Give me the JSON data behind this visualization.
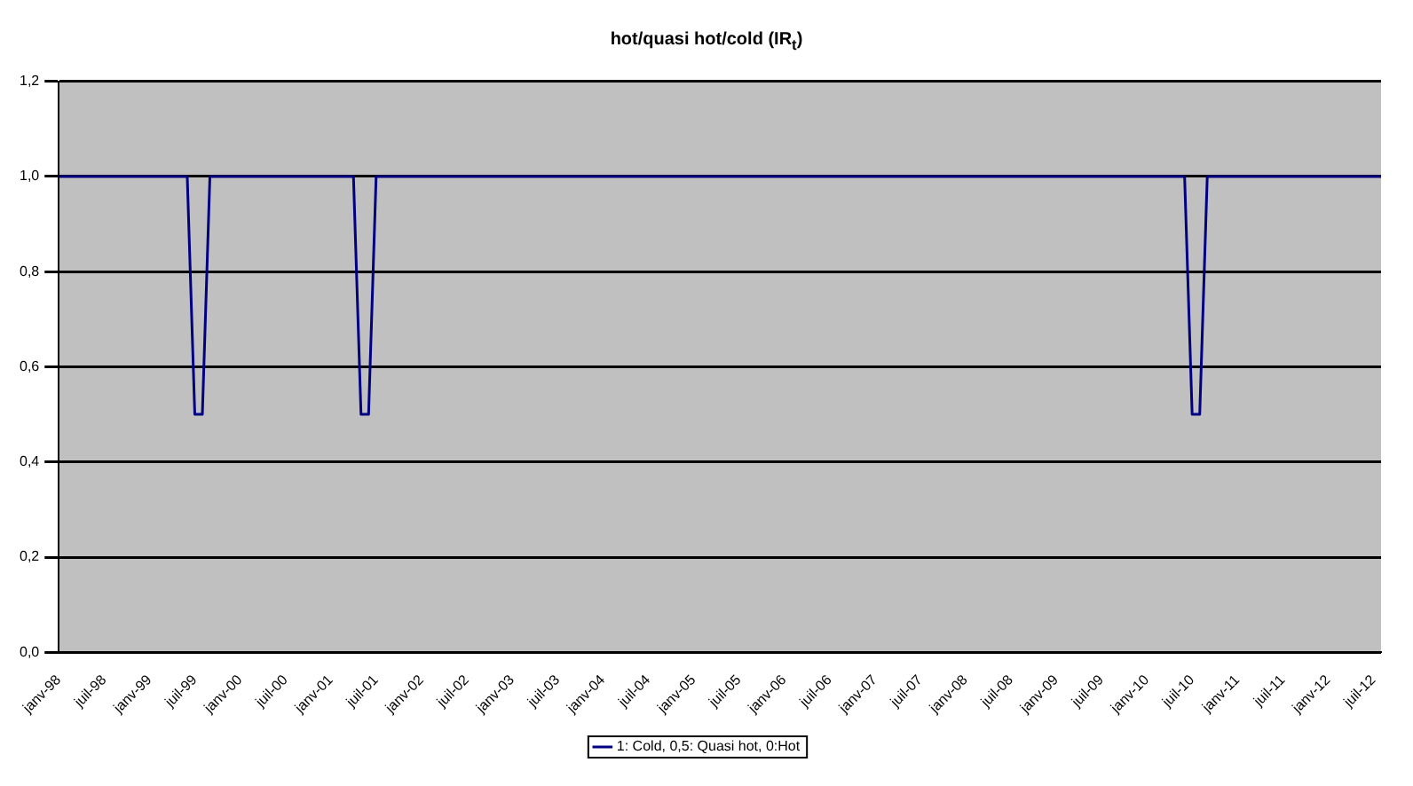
{
  "chart_data": {
    "type": "line",
    "title": "hot/quasi hot/cold (IR$_{t}$)",
    "x": [
      "1998-01",
      "1999-06",
      "1999-07",
      "1999-08",
      "1999-09",
      "2001-04",
      "2001-05",
      "2001-06",
      "2001-07",
      "2010-06",
      "2010-07",
      "2010-08",
      "2010-09",
      "2012-08"
    ],
    "series": [
      {
        "name": "1: Cold, 0,5: Quasi hot, 0:Hot",
        "color": "#000080",
        "values": [
          1,
          1,
          0.5,
          0.5,
          1,
          1,
          0.5,
          0.5,
          1,
          1,
          0.5,
          0.5,
          1,
          1
        ]
      }
    ],
    "xlim": [
      "1998-01",
      "2012-08"
    ],
    "xticks": [
      {
        "value": "1998-01",
        "label": "janv-98"
      },
      {
        "value": "1998-07",
        "label": "juil-98"
      },
      {
        "value": "1999-01",
        "label": "janv-99"
      },
      {
        "value": "1999-07",
        "label": "juil-99"
      },
      {
        "value": "2000-01",
        "label": "janv-00"
      },
      {
        "value": "2000-07",
        "label": "juil-00"
      },
      {
        "value": "2001-01",
        "label": "janv-01"
      },
      {
        "value": "2001-07",
        "label": "juil-01"
      },
      {
        "value": "2002-01",
        "label": "janv-02"
      },
      {
        "value": "2002-07",
        "label": "juil-02"
      },
      {
        "value": "2003-01",
        "label": "janv-03"
      },
      {
        "value": "2003-07",
        "label": "juil-03"
      },
      {
        "value": "2004-01",
        "label": "janv-04"
      },
      {
        "value": "2004-07",
        "label": "juil-04"
      },
      {
        "value": "2005-01",
        "label": "janv-05"
      },
      {
        "value": "2005-07",
        "label": "juil-05"
      },
      {
        "value": "2006-01",
        "label": "janv-06"
      },
      {
        "value": "2006-07",
        "label": "juil-06"
      },
      {
        "value": "2007-01",
        "label": "janv-07"
      },
      {
        "value": "2007-07",
        "label": "juil-07"
      },
      {
        "value": "2008-01",
        "label": "janv-08"
      },
      {
        "value": "2008-07",
        "label": "juil-08"
      },
      {
        "value": "2009-01",
        "label": "janv-09"
      },
      {
        "value": "2009-07",
        "label": "juil-09"
      },
      {
        "value": "2010-01",
        "label": "janv-10"
      },
      {
        "value": "2010-07",
        "label": "juil-10"
      },
      {
        "value": "2011-01",
        "label": "janv-11"
      },
      {
        "value": "2011-07",
        "label": "juil-11"
      },
      {
        "value": "2012-01",
        "label": "janv-12"
      },
      {
        "value": "2012-07",
        "label": "juil-12"
      }
    ],
    "ylim": [
      0,
      1.2
    ],
    "yticks": [
      {
        "value": 0,
        "label": "0,0"
      },
      {
        "value": 0.2,
        "label": "0,2"
      },
      {
        "value": 0.4,
        "label": "0,4"
      },
      {
        "value": 0.6,
        "label": "0,6"
      },
      {
        "value": 0.8,
        "label": "0,8"
      },
      {
        "value": 1,
        "label": "1,0"
      },
      {
        "value": 1.2,
        "label": "1,2"
      }
    ],
    "grid": "y",
    "legend": "bottom",
    "marker": "none",
    "line_style": "solid"
  }
}
